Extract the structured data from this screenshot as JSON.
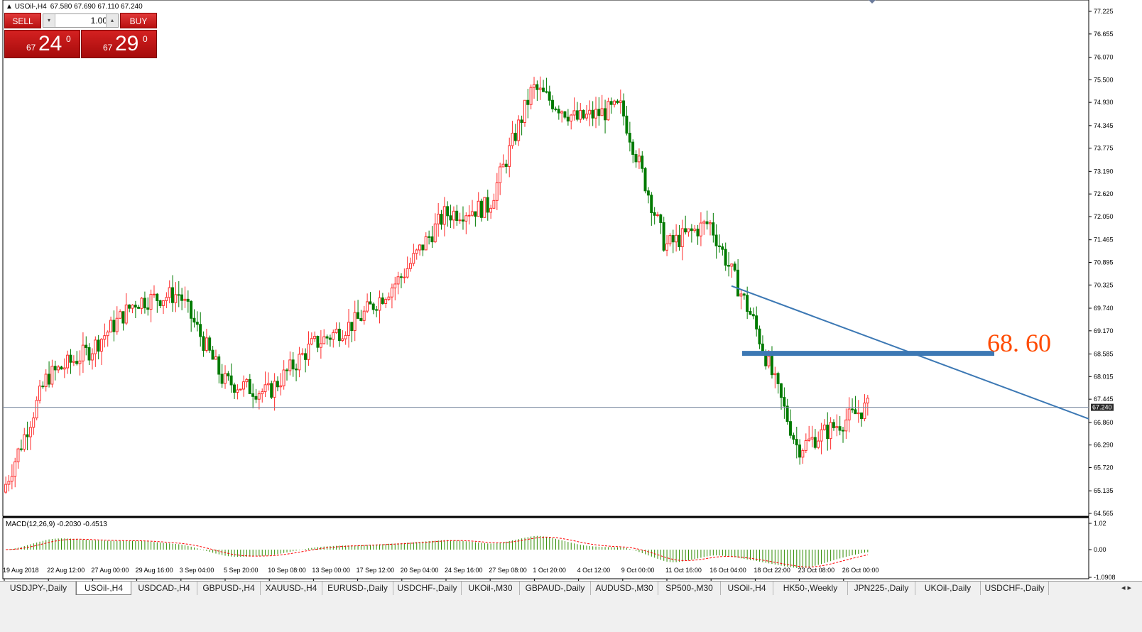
{
  "header": {
    "symbol": "USOil-,H4",
    "ohlc": "67.580 67.690 67.110 67.240"
  },
  "trade_panel": {
    "sell_label": "SELL",
    "buy_label": "BUY",
    "lot_value": "1.00",
    "sell_small": "67",
    "sell_big": "24",
    "sell_sup": "0",
    "buy_small": "67",
    "buy_big": "29",
    "buy_sup": "0"
  },
  "annotation": {
    "level_text": "68. 60"
  },
  "price_axis": [
    "77.225",
    "76.655",
    "76.070",
    "75.500",
    "74.930",
    "74.345",
    "73.775",
    "73.190",
    "72.620",
    "72.050",
    "71.465",
    "70.895",
    "70.325",
    "69.740",
    "69.170",
    "68.585",
    "68.015",
    "67.445",
    "66.860",
    "66.290",
    "65.720",
    "65.135",
    "64.565"
  ],
  "current_price": "67.240",
  "macd": {
    "label": "MACD(12,26,9) -0.2030 -0.4513",
    "axis": [
      "1.02",
      "0.00",
      "-1.0908"
    ]
  },
  "time_axis": [
    "19 Aug 2018",
    "22 Aug 12:00",
    "27 Aug 00:00",
    "29 Aug 16:00",
    "3 Sep 04:00",
    "5 Sep 20:00",
    "10 Sep 08:00",
    "13 Sep 00:00",
    "17 Sep 12:00",
    "20 Sep 04:00",
    "24 Sep 16:00",
    "27 Sep 08:00",
    "1 Oct 20:00",
    "4 Oct 12:00",
    "9 Oct 00:00",
    "11 Oct 16:00",
    "16 Oct 04:00",
    "18 Oct 22:00",
    "23 Oct 08:00",
    "26 Oct 00:00"
  ],
  "tabs": [
    {
      "label": "USDJPY-,Daily"
    },
    {
      "label": "USOil-,H4",
      "active": true
    },
    {
      "label": "USDCAD-,H4"
    },
    {
      "label": "GBPUSD-,H4"
    },
    {
      "label": "XAUUSD-,H4"
    },
    {
      "label": "EURUSD-,Daily"
    },
    {
      "label": "USDCHF-,Daily"
    },
    {
      "label": "UKOil-,M30"
    },
    {
      "label": "GBPAUD-,Daily"
    },
    {
      "label": "AUDUSD-,M30"
    },
    {
      "label": "SP500-,M30"
    },
    {
      "label": "USOil-,H4"
    },
    {
      "label": "HK50-,Weekly"
    },
    {
      "label": "JPN225-,Daily"
    },
    {
      "label": "UKOil-,Daily"
    },
    {
      "label": "USDCHF-,Daily"
    }
  ],
  "tab_scroll": "◂ ▸",
  "colors": {
    "up": "#ff2b2b",
    "down": "#007a00",
    "trendline": "#3c78b4",
    "level": "#3c78b4",
    "annotation": "#ff4a00",
    "macd_signal": "#ff0000",
    "macd_hist": "#2e8b00"
  },
  "chart_data": {
    "type": "candlestick",
    "price_range": [
      64.565,
      77.225
    ],
    "close_path": [
      {
        "date": "19 Aug 2018",
        "price": 65.1
      },
      {
        "date": "22 Aug 12:00",
        "price": 68.0
      },
      {
        "date": "27 Aug 00:00",
        "price": 68.7
      },
      {
        "date": "29 Aug 16:00",
        "price": 69.9
      },
      {
        "date": "3 Sep 04:00",
        "price": 70.1
      },
      {
        "date": "5 Sep 20:00",
        "price": 67.9
      },
      {
        "date": "10 Sep 08:00",
        "price": 67.6
      },
      {
        "date": "13 Sep 00:00",
        "price": 68.8
      },
      {
        "date": "17 Sep 12:00",
        "price": 69.4
      },
      {
        "date": "20 Sep 04:00",
        "price": 70.5
      },
      {
        "date": "24 Sep 16:00",
        "price": 72.1
      },
      {
        "date": "27 Sep 08:00",
        "price": 72.3
      },
      {
        "date": "1 Oct 20:00",
        "price": 75.3
      },
      {
        "date": "4 Oct 12:00",
        "price": 74.5
      },
      {
        "date": "9 Oct 00:00",
        "price": 74.8
      },
      {
        "date": "11 Oct 16:00",
        "price": 71.3
      },
      {
        "date": "16 Oct 04:00",
        "price": 71.9
      },
      {
        "date": "18 Oct 22:00",
        "price": 69.4
      },
      {
        "date": "23 Oct 08:00",
        "price": 66.2
      },
      {
        "date": "26 Oct 00:00",
        "price": 67.24
      }
    ],
    "horizontal_level": 68.6,
    "trendline": [
      {
        "date": "16 Oct 04:00",
        "price": 70.3
      },
      {
        "date": "right edge",
        "price": 66.95
      }
    ]
  }
}
